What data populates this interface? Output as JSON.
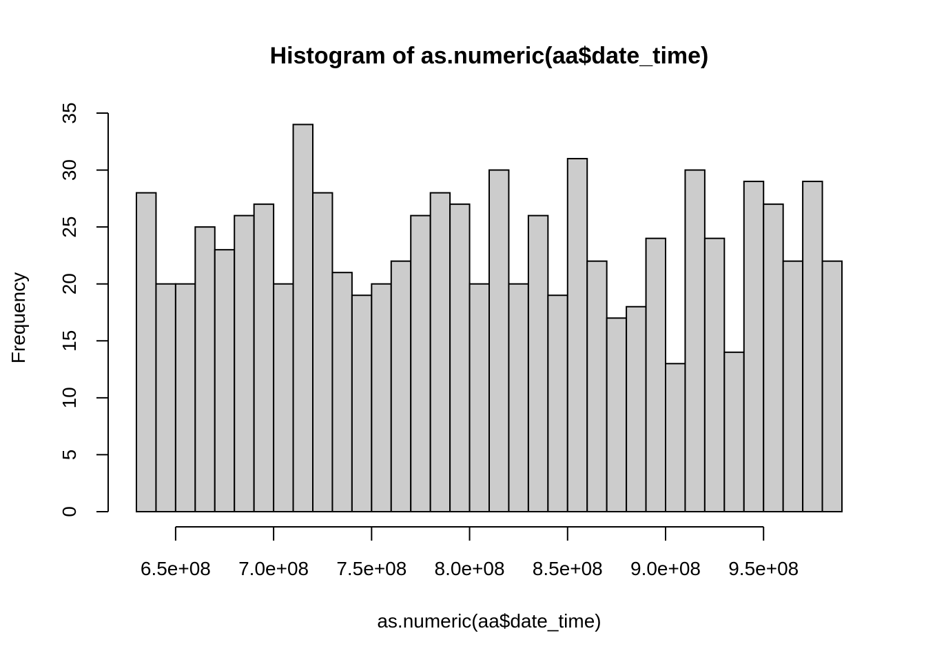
{
  "chart_data": {
    "type": "bar",
    "title": "Histogram of as.numeric(aa$date_time)",
    "xlabel": "as.numeric(aa$date_time)",
    "ylabel": "Frequency",
    "bin_start": 630000000,
    "bin_width": 10000000,
    "values": [
      28,
      20,
      20,
      25,
      23,
      26,
      27,
      20,
      34,
      28,
      21,
      19,
      20,
      22,
      26,
      28,
      27,
      20,
      30,
      20,
      26,
      19,
      31,
      22,
      17,
      18,
      24,
      13,
      30,
      24,
      14,
      29,
      27,
      22,
      29,
      22
    ],
    "xlim": [
      630000000,
      990000000
    ],
    "ylim": [
      0,
      35
    ],
    "x_ticks": [
      650000000,
      700000000,
      750000000,
      800000000,
      850000000,
      900000000,
      950000000
    ],
    "x_tick_labels": [
      "6.5e+08",
      "7.0e+08",
      "7.5e+08",
      "8.0e+08",
      "8.5e+08",
      "9.0e+08",
      "9.5e+08"
    ],
    "y_ticks": [
      0,
      5,
      10,
      15,
      20,
      25,
      30,
      35
    ],
    "y_tick_labels": [
      "0",
      "5",
      "10",
      "15",
      "20",
      "25",
      "30",
      "35"
    ],
    "bar_fill": "#cccccc",
    "bar_stroke": "#000000",
    "grid": false,
    "legend": "none"
  }
}
